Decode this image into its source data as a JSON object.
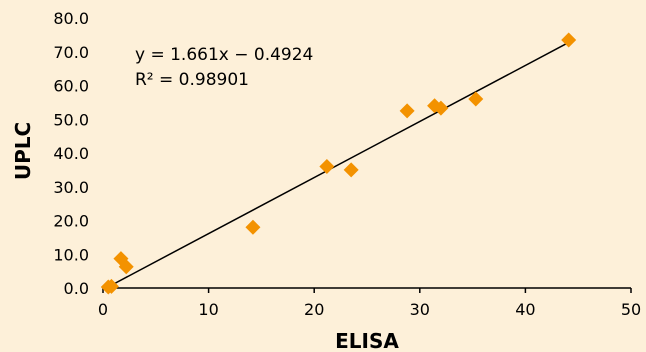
{
  "chart_data": {
    "type": "scatter",
    "xlabel": "ELISA",
    "ylabel": "UPLC",
    "xlim": [
      0,
      50
    ],
    "ylim": [
      0,
      80
    ],
    "x_ticks": [
      "0",
      "10",
      "20",
      "30",
      "40",
      "50"
    ],
    "y_ticks": [
      "0.0",
      "10.0",
      "20.0",
      "30.0",
      "40.0",
      "50.0",
      "60.0",
      "70.0",
      "80.0"
    ],
    "grid": false,
    "marker": "diamond",
    "marker_color": "#f39200",
    "trendline": {
      "slope": 1.661,
      "intercept": -0.4924,
      "equation_label": "y = 1.661x − 0.4924",
      "r2_label": "R² = 0.98901",
      "color": "#000000"
    },
    "points": [
      {
        "x": 0.5,
        "y": 0.3
      },
      {
        "x": 0.8,
        "y": 0.5
      },
      {
        "x": 1.7,
        "y": 8.7
      },
      {
        "x": 2.2,
        "y": 6.3
      },
      {
        "x": 14.2,
        "y": 18.0
      },
      {
        "x": 21.2,
        "y": 36.0
      },
      {
        "x": 23.5,
        "y": 35.0
      },
      {
        "x": 28.8,
        "y": 52.5
      },
      {
        "x": 31.4,
        "y": 54.0
      },
      {
        "x": 32.0,
        "y": 53.3
      },
      {
        "x": 35.3,
        "y": 56.0
      },
      {
        "x": 44.1,
        "y": 73.5
      }
    ]
  }
}
